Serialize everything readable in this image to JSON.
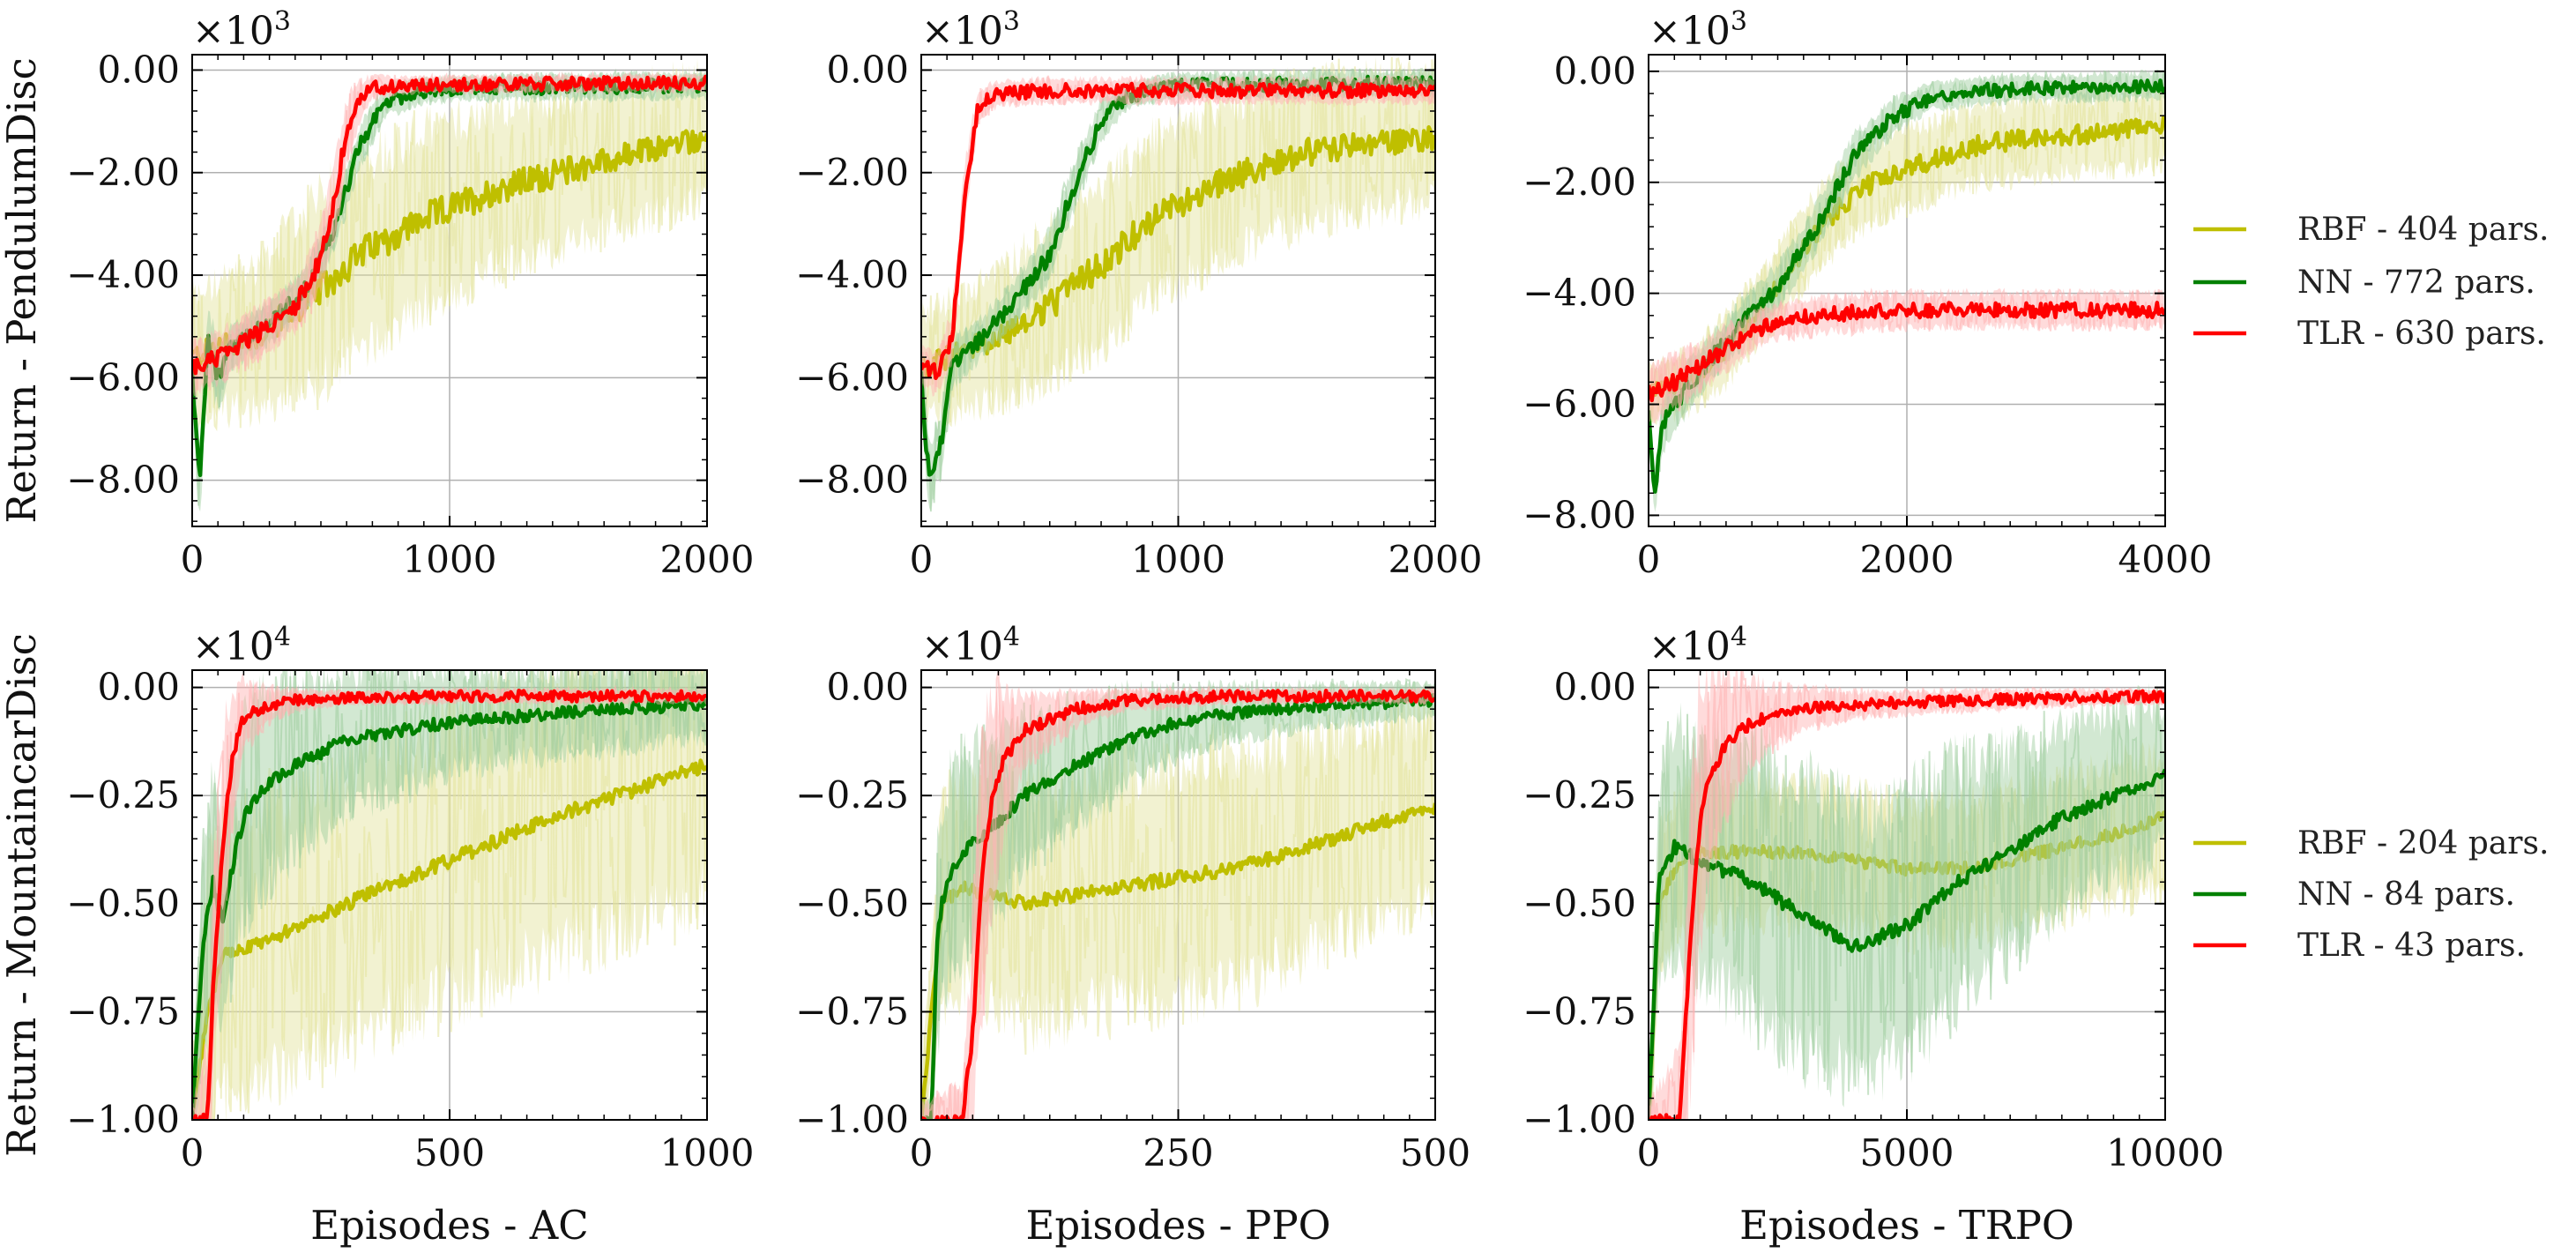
{
  "figure": {
    "row_labels": [
      "Return - PendulumDisc",
      "Return - MountaincarDisc"
    ],
    "col_labels": [
      "Episodes - AC",
      "Episodes - PPO",
      "Episodes - TRPO"
    ],
    "sci_multipliers": [
      {
        "base": "×10",
        "exp": "3"
      },
      {
        "base": "×10",
        "exp": "4"
      }
    ]
  },
  "legends": [
    {
      "items": [
        {
          "label": "RBF - 404 pars.",
          "color": "#bfbf00"
        },
        {
          "label": "NN - 772 pars.",
          "color": "#008000"
        },
        {
          "label": "TLR - 630 pars.",
          "color": "#ff0000"
        }
      ]
    },
    {
      "items": [
        {
          "label": "RBF - 204 pars.",
          "color": "#bfbf00"
        },
        {
          "label": "NN - 84 pars.",
          "color": "#008000"
        },
        {
          "label": "TLR - 43 pars.",
          "color": "#ff0000"
        }
      ]
    }
  ],
  "chart_data": [
    {
      "type": "line",
      "title": "",
      "xlabel": "Episodes - AC",
      "ylabel": "Return - PendulumDisc",
      "xlim": [
        0,
        2000
      ],
      "ylim": [
        -8.9,
        0.3
      ],
      "xticks": [
        0,
        1000,
        2000
      ],
      "yticks": [
        -8,
        -6,
        -4,
        -2,
        0
      ],
      "ytick_labels": [
        "−8.00",
        "−6.00",
        "−4.00",
        "−2.00",
        "0.00"
      ],
      "y_multiplier": "×10^3",
      "series": [
        {
          "name": "RBF",
          "x": [
            0,
            100,
            250,
            450,
            650,
            900,
            1200,
            1500,
            1750,
            2000
          ],
          "y": [
            -5.6,
            -5.4,
            -5.2,
            -4.5,
            -3.6,
            -2.9,
            -2.3,
            -1.9,
            -1.6,
            -1.3
          ],
          "band": [
            1.5,
            1.6,
            1.8,
            2.3,
            2.4,
            2.2,
            2.0,
            1.8,
            1.7,
            1.6
          ]
        },
        {
          "name": "NN",
          "x": [
            0,
            30,
            60,
            100,
            150,
            250,
            350,
            450,
            550,
            650,
            750,
            900,
            1100,
            2000
          ],
          "y": [
            -6.0,
            -8.2,
            -5.2,
            -6.0,
            -5.4,
            -5.1,
            -4.7,
            -4.2,
            -3.1,
            -1.5,
            -0.6,
            -0.4,
            -0.35,
            -0.3
          ],
          "band": [
            0.8,
            0.8,
            0.8,
            0.8,
            0.5,
            0.5,
            0.5,
            0.5,
            0.5,
            0.5,
            0.4,
            0.3,
            0.3,
            0.3
          ]
        },
        {
          "name": "TLR",
          "x": [
            0,
            100,
            200,
            300,
            400,
            500,
            550,
            600,
            650,
            700,
            800,
            1000,
            2000
          ],
          "y": [
            -5.8,
            -5.6,
            -5.3,
            -5.0,
            -4.6,
            -3.7,
            -2.6,
            -1.2,
            -0.6,
            -0.35,
            -0.3,
            -0.28,
            -0.25
          ],
          "band": [
            0.6,
            0.6,
            0.6,
            0.6,
            0.6,
            0.8,
            0.9,
            0.8,
            0.5,
            0.3,
            0.2,
            0.2,
            0.2
          ]
        }
      ]
    },
    {
      "type": "line",
      "title": "",
      "xlabel": "Episodes - PPO",
      "ylabel": "",
      "xlim": [
        0,
        2000
      ],
      "ylim": [
        -8.9,
        0.3
      ],
      "xticks": [
        0,
        1000,
        2000
      ],
      "yticks": [
        -8,
        -6,
        -4,
        -2,
        0
      ],
      "ytick_labels": [
        "−8.00",
        "−6.00",
        "−4.00",
        "−2.00",
        "0.00"
      ],
      "y_multiplier": "×10^3",
      "series": [
        {
          "name": "RBF",
          "x": [
            0,
            100,
            300,
            500,
            700,
            900,
            1200,
            1500,
            2000
          ],
          "y": [
            -5.8,
            -5.6,
            -5.2,
            -4.6,
            -3.8,
            -2.9,
            -2.1,
            -1.6,
            -1.3
          ],
          "band": [
            1.3,
            1.4,
            1.6,
            1.9,
            2.1,
            2.0,
            1.9,
            1.8,
            1.6
          ]
        },
        {
          "name": "NN",
          "x": [
            0,
            30,
            80,
            120,
            200,
            350,
            500,
            600,
            700,
            800,
            1000,
            2000
          ],
          "y": [
            -6.0,
            -8.0,
            -7.2,
            -5.7,
            -5.4,
            -4.6,
            -3.6,
            -2.2,
            -1.0,
            -0.5,
            -0.3,
            -0.25
          ],
          "band": [
            0.8,
            0.8,
            0.8,
            0.6,
            0.5,
            0.5,
            0.6,
            0.6,
            0.5,
            0.3,
            0.3,
            0.3
          ]
        },
        {
          "name": "TLR",
          "x": [
            0,
            60,
            120,
            170,
            220,
            300,
            500,
            1000,
            2000
          ],
          "y": [
            -5.8,
            -5.9,
            -5.2,
            -2.4,
            -0.7,
            -0.45,
            -0.4,
            -0.4,
            -0.4
          ],
          "band": [
            0.5,
            0.5,
            0.6,
            0.8,
            0.4,
            0.3,
            0.3,
            0.3,
            0.3
          ]
        }
      ]
    },
    {
      "type": "line",
      "title": "",
      "xlabel": "Episodes - TRPO",
      "ylabel": "",
      "xlim": [
        0,
        4000
      ],
      "ylim": [
        -8.2,
        0.3
      ],
      "xticks": [
        0,
        2000,
        4000
      ],
      "yticks": [
        -8,
        -6,
        -4,
        -2,
        0
      ],
      "ytick_labels": [
        "−8.00",
        "−6.00",
        "−4.00",
        "−2.00",
        "0.00"
      ],
      "y_multiplier": "×10^3",
      "series": [
        {
          "name": "RBF",
          "x": [
            0,
            300,
            600,
            900,
            1200,
            1500,
            1800,
            2200,
            2600,
            3000,
            3500,
            4000
          ],
          "y": [
            -5.8,
            -5.6,
            -5.0,
            -4.2,
            -3.2,
            -2.4,
            -1.9,
            -1.6,
            -1.3,
            -1.2,
            -1.1,
            -1.0
          ],
          "band": [
            0.6,
            0.7,
            0.8,
            0.8,
            0.9,
            0.9,
            0.9,
            0.9,
            0.9,
            0.9,
            0.9,
            0.9
          ]
        },
        {
          "name": "NN",
          "x": [
            0,
            50,
            100,
            200,
            400,
            700,
            1000,
            1300,
            1600,
            1900,
            2200,
            2600,
            3000,
            4000
          ],
          "y": [
            -6.2,
            -7.6,
            -6.4,
            -6.0,
            -5.4,
            -4.6,
            -3.9,
            -2.8,
            -1.5,
            -0.8,
            -0.45,
            -0.35,
            -0.3,
            -0.25
          ],
          "band": [
            0.6,
            0.5,
            0.6,
            0.6,
            0.5,
            0.5,
            0.5,
            0.5,
            0.5,
            0.4,
            0.3,
            0.3,
            0.3,
            0.3
          ]
        },
        {
          "name": "TLR",
          "x": [
            0,
            200,
            400,
            600,
            800,
            1000,
            1300,
            1600,
            2000,
            3000,
            4000
          ],
          "y": [
            -5.8,
            -5.6,
            -5.3,
            -5.0,
            -4.7,
            -4.5,
            -4.4,
            -4.35,
            -4.3,
            -4.3,
            -4.3
          ],
          "band": [
            0.6,
            0.6,
            0.5,
            0.5,
            0.4,
            0.4,
            0.4,
            0.4,
            0.4,
            0.4,
            0.4
          ]
        }
      ]
    },
    {
      "type": "line",
      "title": "",
      "xlabel": "Episodes - AC",
      "ylabel": "Return - MountaincarDisc",
      "xlim": [
        0,
        1000
      ],
      "ylim": [
        -1.0,
        0.04
      ],
      "xticks": [
        0,
        500,
        1000
      ],
      "yticks": [
        -1.0,
        -0.75,
        -0.5,
        -0.25,
        0
      ],
      "ytick_labels": [
        "−1.00",
        "−0.75",
        "−0.50",
        "−0.25",
        "0.00"
      ],
      "y_multiplier": "×10^4",
      "series": [
        {
          "name": "RBF",
          "x": [
            0,
            30,
            60,
            100,
            200,
            300,
            400,
            500,
            600,
            700,
            800,
            900,
            1000
          ],
          "y": [
            -1.0,
            -0.75,
            -0.62,
            -0.6,
            -0.56,
            -0.5,
            -0.45,
            -0.4,
            -0.35,
            -0.3,
            -0.26,
            -0.22,
            -0.18
          ],
          "band": [
            0.2,
            0.4,
            0.4,
            0.4,
            0.4,
            0.4,
            0.4,
            0.4,
            0.4,
            0.4,
            0.4,
            0.4,
            0.4
          ]
        },
        {
          "name": "NN",
          "x": [
            0,
            20,
            40,
            60,
            80,
            100,
            150,
            200,
            300,
            400,
            500,
            600,
            800,
            1000
          ],
          "y": [
            -1.0,
            -0.6,
            -0.45,
            -0.55,
            -0.4,
            -0.3,
            -0.22,
            -0.18,
            -0.12,
            -0.1,
            -0.08,
            -0.07,
            -0.05,
            -0.04
          ],
          "band": [
            0.1,
            0.3,
            0.3,
            0.3,
            0.3,
            0.3,
            0.28,
            0.25,
            0.2,
            0.18,
            0.15,
            0.13,
            0.12,
            0.1
          ]
        },
        {
          "name": "TLR",
          "x": [
            0,
            30,
            40,
            60,
            80,
            100,
            150,
            200,
            300,
            500,
            1000
          ],
          "y": [
            -1.0,
            -1.0,
            -0.7,
            -0.35,
            -0.15,
            -0.07,
            -0.04,
            -0.03,
            -0.025,
            -0.02,
            -0.02
          ],
          "band": [
            0.05,
            0.2,
            0.3,
            0.3,
            0.2,
            0.1,
            0.05,
            0.03,
            0.02,
            0.02,
            0.02
          ]
        }
      ]
    },
    {
      "type": "line",
      "title": "",
      "xlabel": "Episodes - PPO",
      "ylabel": "",
      "xlim": [
        0,
        500
      ],
      "ylim": [
        -1.0,
        0.04
      ],
      "xticks": [
        0,
        250,
        500
      ],
      "yticks": [
        -1.0,
        -0.75,
        -0.5,
        -0.25,
        0
      ],
      "ytick_labels": [
        "−1.00",
        "−0.75",
        "−0.50",
        "−0.25",
        "0.00"
      ],
      "y_multiplier": "×10^4",
      "series": [
        {
          "name": "RBF",
          "x": [
            0,
            20,
            40,
            60,
            100,
            150,
            200,
            250,
            300,
            350,
            400,
            450,
            500
          ],
          "y": [
            -1.0,
            -0.5,
            -0.46,
            -0.48,
            -0.5,
            -0.48,
            -0.46,
            -0.44,
            -0.42,
            -0.39,
            -0.35,
            -0.31,
            -0.28
          ],
          "band": [
            0.1,
            0.3,
            0.3,
            0.3,
            0.35,
            0.35,
            0.35,
            0.35,
            0.35,
            0.33,
            0.3,
            0.3,
            0.28
          ]
        },
        {
          "name": "NN",
          "x": [
            0,
            10,
            15,
            20,
            30,
            50,
            80,
            100,
            150,
            200,
            250,
            300,
            400,
            500
          ],
          "y": [
            -1.0,
            -1.0,
            -0.6,
            -0.5,
            -0.42,
            -0.36,
            -0.3,
            -0.25,
            -0.18,
            -0.12,
            -0.08,
            -0.06,
            -0.04,
            -0.03
          ],
          "band": [
            0.05,
            0.05,
            0.3,
            0.3,
            0.3,
            0.28,
            0.25,
            0.22,
            0.18,
            0.14,
            0.1,
            0.08,
            0.06,
            0.05
          ]
        },
        {
          "name": "TLR",
          "x": [
            0,
            40,
            50,
            60,
            70,
            80,
            100,
            150,
            200,
            300,
            500
          ],
          "y": [
            -1.0,
            -1.0,
            -0.8,
            -0.4,
            -0.25,
            -0.17,
            -0.1,
            -0.05,
            -0.03,
            -0.02,
            -0.02
          ],
          "band": [
            0.05,
            0.1,
            0.3,
            0.4,
            0.3,
            0.2,
            0.1,
            0.05,
            0.03,
            0.02,
            0.02
          ]
        }
      ]
    },
    {
      "type": "line",
      "title": "",
      "xlabel": "Episodes - TRPO",
      "ylabel": "",
      "xlim": [
        0,
        10000
      ],
      "ylim": [
        -1.0,
        0.04
      ],
      "xticks": [
        0,
        5000,
        10000
      ],
      "yticks": [
        -1.0,
        -0.75,
        -0.5,
        -0.25,
        0
      ],
      "ytick_labels": [
        "−1.00",
        "−0.75",
        "−0.50",
        "−0.25",
        "0.00"
      ],
      "y_multiplier": "×10^4",
      "series": [
        {
          "name": "RBF",
          "x": [
            0,
            200,
            600,
            1000,
            2000,
            3000,
            4000,
            5000,
            6000,
            7000,
            8000,
            9000,
            10000
          ],
          "y": [
            -1.0,
            -0.5,
            -0.4,
            -0.38,
            -0.38,
            -0.38,
            -0.4,
            -0.42,
            -0.42,
            -0.4,
            -0.37,
            -0.34,
            -0.3
          ],
          "band": [
            0.1,
            0.2,
            0.2,
            0.2,
            0.2,
            0.2,
            0.2,
            0.2,
            0.2,
            0.2,
            0.2,
            0.2,
            0.2
          ]
        },
        {
          "name": "NN",
          "x": [
            0,
            200,
            500,
            1000,
            2000,
            3000,
            4000,
            5000,
            6000,
            7000,
            8000,
            9000,
            10000
          ],
          "y": [
            -1.0,
            -0.45,
            -0.37,
            -0.4,
            -0.45,
            -0.53,
            -0.6,
            -0.55,
            -0.45,
            -0.38,
            -0.3,
            -0.25,
            -0.2
          ],
          "band": [
            0.1,
            0.3,
            0.35,
            0.35,
            0.38,
            0.4,
            0.4,
            0.38,
            0.35,
            0.3,
            0.27,
            0.25,
            0.22
          ]
        },
        {
          "name": "TLR",
          "x": [
            0,
            600,
            800,
            1000,
            1200,
            1500,
            2000,
            3000,
            4000,
            6000,
            10000
          ],
          "y": [
            -1.0,
            -1.0,
            -0.6,
            -0.3,
            -0.2,
            -0.13,
            -0.08,
            -0.05,
            -0.04,
            -0.03,
            -0.02
          ],
          "band": [
            0.05,
            0.2,
            0.4,
            0.4,
            0.3,
            0.2,
            0.12,
            0.06,
            0.04,
            0.03,
            0.02
          ]
        }
      ]
    }
  ]
}
